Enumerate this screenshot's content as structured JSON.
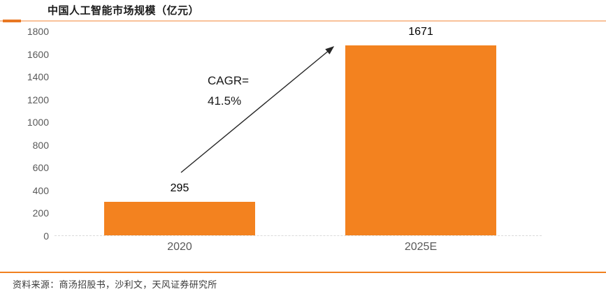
{
  "page": {
    "title": "中国人工智能市场规模（亿元）",
    "source": "资料来源：商汤招股书，沙利文，天风证券研究所"
  },
  "annotation": {
    "line1": "CAGR=",
    "line2": "41.5%"
  },
  "colors": {
    "bar": "#F3821F",
    "divider_light": "#F9C29A",
    "divider_dark": "#E87722",
    "bottom_line": "#F0801F",
    "axis_text": "#595959"
  },
  "chart_data": {
    "type": "bar",
    "title": "中国人工智能市场规模（亿元）",
    "categories": [
      "2020",
      "2025E"
    ],
    "values": [
      295,
      1671
    ],
    "ylim": [
      0,
      1800
    ],
    "ytick_step": 200,
    "yticks": [
      1800,
      1600,
      1400,
      1200,
      1000,
      800,
      600,
      400,
      200,
      0
    ],
    "xlabel": "",
    "ylabel": "",
    "grid": "baseline-only",
    "legend_position": "none",
    "annotation": "CAGR= 41.5%"
  }
}
